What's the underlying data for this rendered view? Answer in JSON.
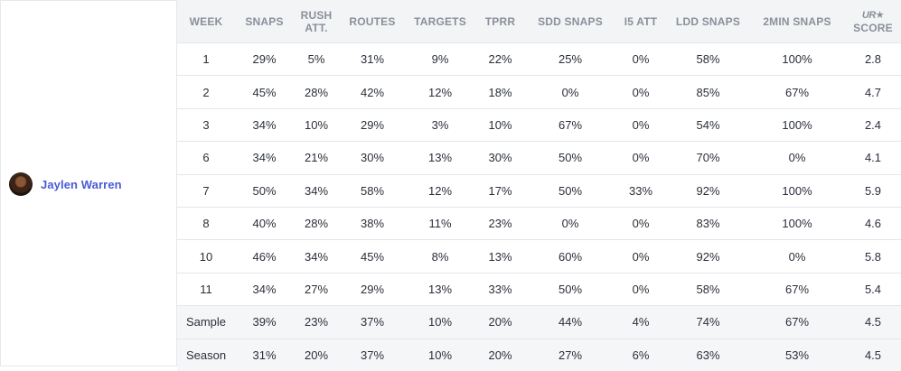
{
  "player": {
    "name": "Jaylen Warren"
  },
  "headers": [
    {
      "line1": "WEEK",
      "line2": ""
    },
    {
      "line1": "SNAPS",
      "line2": ""
    },
    {
      "line1": "RUSH",
      "line2": "ATT."
    },
    {
      "line1": "ROUTES",
      "line2": ""
    },
    {
      "line1": "TARGETS",
      "line2": ""
    },
    {
      "line1": "TPRR",
      "line2": ""
    },
    {
      "line1": "SDD SNAPS",
      "line2": ""
    },
    {
      "line1": "I5 ATT",
      "line2": ""
    },
    {
      "line1": "LDD SNAPS",
      "line2": ""
    },
    {
      "line1": "2MIN SNAPS",
      "line2": ""
    },
    {
      "line1": "",
      "line2": "SCORE",
      "logo": "UR★"
    }
  ],
  "rows": [
    [
      "1",
      "29%",
      "5%",
      "31%",
      "9%",
      "22%",
      "25%",
      "0%",
      "58%",
      "100%",
      "2.8"
    ],
    [
      "2",
      "45%",
      "28%",
      "42%",
      "12%",
      "18%",
      "0%",
      "0%",
      "85%",
      "67%",
      "4.7"
    ],
    [
      "3",
      "34%",
      "10%",
      "29%",
      "3%",
      "10%",
      "67%",
      "0%",
      "54%",
      "100%",
      "2.4"
    ],
    [
      "6",
      "34%",
      "21%",
      "30%",
      "13%",
      "30%",
      "50%",
      "0%",
      "70%",
      "0%",
      "4.1"
    ],
    [
      "7",
      "50%",
      "34%",
      "58%",
      "12%",
      "17%",
      "50%",
      "33%",
      "92%",
      "100%",
      "5.9"
    ],
    [
      "8",
      "40%",
      "28%",
      "38%",
      "11%",
      "23%",
      "0%",
      "0%",
      "83%",
      "100%",
      "4.6"
    ],
    [
      "10",
      "46%",
      "34%",
      "45%",
      "8%",
      "13%",
      "60%",
      "0%",
      "92%",
      "0%",
      "5.8"
    ],
    [
      "11",
      "34%",
      "27%",
      "29%",
      "13%",
      "33%",
      "50%",
      "0%",
      "58%",
      "67%",
      "5.4"
    ]
  ],
  "summary_rows": [
    [
      "Sample",
      "39%",
      "23%",
      "37%",
      "10%",
      "20%",
      "44%",
      "4%",
      "74%",
      "67%",
      "4.5"
    ],
    [
      "Season",
      "31%",
      "20%",
      "37%",
      "10%",
      "20%",
      "27%",
      "6%",
      "63%",
      "53%",
      "4.5"
    ]
  ]
}
